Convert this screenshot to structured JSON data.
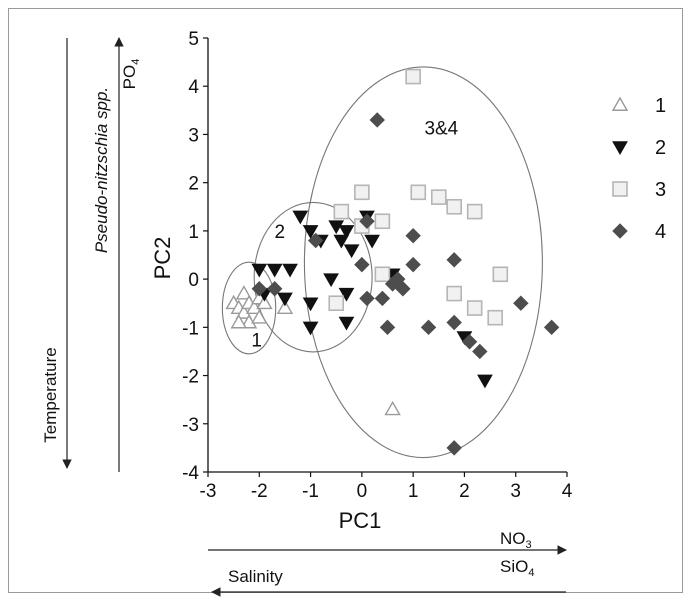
{
  "chart_data": {
    "type": "scatter",
    "xlabel": "PC1",
    "ylabel": "PC2",
    "xlim": [
      -3,
      4
    ],
    "ylim": [
      -4,
      5
    ],
    "x_ticks": [
      "-3",
      "-2",
      "-1",
      "0",
      "1",
      "2",
      "3",
      "4"
    ],
    "y_ticks": [
      "-4",
      "-3",
      "-2",
      "-1",
      "0",
      "1",
      "2",
      "3",
      "4",
      "5"
    ],
    "grid": false,
    "legend_position": "right",
    "series": [
      {
        "name": "1",
        "marker": "triangle-up-open",
        "color": "#9a9a9a",
        "points": [
          [
            -2.5,
            -0.5
          ],
          [
            -2.4,
            -0.6
          ],
          [
            -2.3,
            -0.3
          ],
          [
            -2.3,
            -0.7
          ],
          [
            -2.2,
            -0.5
          ],
          [
            -2.2,
            -0.9
          ],
          [
            -2.4,
            -0.9
          ],
          [
            -2.1,
            -0.6
          ],
          [
            -2.0,
            -0.4
          ],
          [
            -2.0,
            -0.8
          ],
          [
            -1.9,
            -0.5
          ],
          [
            -1.5,
            -0.6
          ],
          [
            0.6,
            -2.7
          ]
        ]
      },
      {
        "name": "2",
        "marker": "triangle-down-filled",
        "color": "#111111",
        "points": [
          [
            -2.0,
            0.2
          ],
          [
            -1.7,
            0.2
          ],
          [
            -1.4,
            0.2
          ],
          [
            -1.2,
            1.3
          ],
          [
            -1.0,
            1.0
          ],
          [
            -0.8,
            0.8
          ],
          [
            -0.5,
            1.1
          ],
          [
            -0.4,
            0.8
          ],
          [
            -0.3,
            1.0
          ],
          [
            -0.2,
            0.6
          ],
          [
            0.1,
            1.3
          ],
          [
            0.2,
            0.8
          ],
          [
            -1.9,
            -0.3
          ],
          [
            -1.5,
            -0.4
          ],
          [
            -1.0,
            -0.5
          ],
          [
            -1.0,
            -1.0
          ],
          [
            -0.6,
            0.0
          ],
          [
            -0.3,
            -0.3
          ],
          [
            -0.3,
            -0.9
          ],
          [
            0.6,
            0.1
          ],
          [
            2.0,
            -1.2
          ],
          [
            2.4,
            -2.1
          ]
        ]
      },
      {
        "name": "3",
        "marker": "square-open",
        "color": "#b5b5b5",
        "points": [
          [
            1.0,
            4.2
          ],
          [
            0.0,
            1.8
          ],
          [
            1.1,
            1.8
          ],
          [
            1.5,
            1.7
          ],
          [
            1.8,
            1.5
          ],
          [
            2.2,
            1.4
          ],
          [
            -0.4,
            1.4
          ],
          [
            0.4,
            1.2
          ],
          [
            0.0,
            1.1
          ],
          [
            -0.5,
            -0.5
          ],
          [
            1.8,
            -0.3
          ],
          [
            2.2,
            -0.6
          ],
          [
            2.6,
            -0.8
          ],
          [
            2.7,
            0.1
          ],
          [
            0.4,
            0.1
          ]
        ]
      },
      {
        "name": "4",
        "marker": "diamond-filled",
        "color": "#4d4d4d",
        "points": [
          [
            0.3,
            3.3
          ],
          [
            -2.0,
            -0.2
          ],
          [
            -1.7,
            -0.2
          ],
          [
            -0.9,
            0.8
          ],
          [
            0.1,
            1.2
          ],
          [
            0.0,
            0.3
          ],
          [
            0.1,
            -0.4
          ],
          [
            0.4,
            -0.4
          ],
          [
            0.5,
            -1.0
          ],
          [
            0.6,
            -0.1
          ],
          [
            1.0,
            0.9
          ],
          [
            1.0,
            0.3
          ],
          [
            1.3,
            -1.0
          ],
          [
            1.8,
            0.4
          ],
          [
            1.8,
            -0.9
          ],
          [
            2.1,
            -1.3
          ],
          [
            2.3,
            -1.5
          ],
          [
            3.1,
            -0.5
          ],
          [
            3.7,
            -1.0
          ],
          [
            1.8,
            -3.5
          ],
          [
            0.8,
            -0.2
          ],
          [
            0.7,
            0.0
          ]
        ]
      }
    ],
    "groups": [
      {
        "label": "1",
        "cx": -2.2,
        "cy": -0.6,
        "rx": 0.52,
        "ry": 0.95,
        "label_at": [
          -2.05,
          -1.4
        ]
      },
      {
        "label": "2",
        "cx": -0.95,
        "cy": 0.04,
        "rx": 1.15,
        "ry": 1.55,
        "label_at": [
          -1.6,
          0.85
        ]
      },
      {
        "label": "3&4",
        "cx": 1.2,
        "cy": 0.35,
        "rx": 2.32,
        "ry": 4.05,
        "label_at": [
          1.55,
          3.0
        ]
      }
    ],
    "annotations": {
      "pseudo_nitzschia": "Pseudo-nitzschia spp.",
      "po4_main": "PO",
      "po4_sub": "4",
      "temperature": "Temperature",
      "no3_main": "NO",
      "no3_sub": "3",
      "sio4_main": "SiO",
      "sio4_sub": "4",
      "salinity": "Salinity"
    }
  }
}
